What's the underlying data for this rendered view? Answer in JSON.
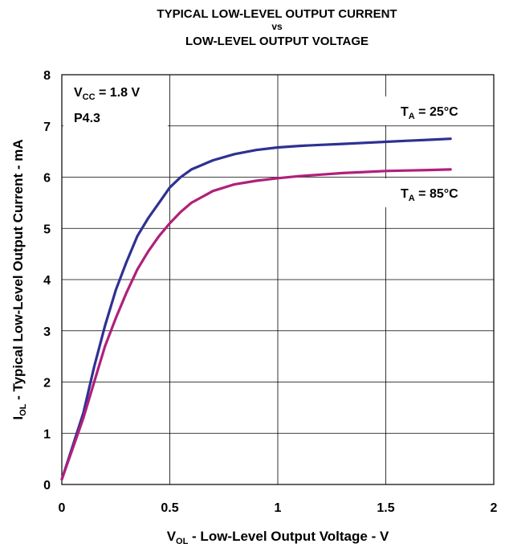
{
  "chart_data": {
    "type": "line",
    "title_lines": [
      "TYPICAL LOW-LEVEL OUTPUT CURRENT",
      "vs",
      "LOW-LEVEL OUTPUT VOLTAGE"
    ],
    "xlabel": {
      "main": "V",
      "sub": "OL",
      "rest": " - Low-Level Output Voltage - V"
    },
    "ylabel": {
      "main": "I",
      "sub": "OL",
      "rest": " - Typical Low-Level Output Current - mA"
    },
    "xlim": [
      0,
      2
    ],
    "ylim": [
      0,
      8
    ],
    "xticks": [
      0,
      0.5,
      1,
      1.5,
      2
    ],
    "xtick_labels": [
      "0",
      "0.5",
      "1",
      "1.5",
      "2"
    ],
    "yticks": [
      0,
      1,
      2,
      3,
      4,
      5,
      6,
      7,
      8
    ],
    "ytick_labels": [
      "0",
      "1",
      "2",
      "3",
      "4",
      "5",
      "6",
      "7",
      "8"
    ],
    "grid": true,
    "annotations": {
      "vcc": {
        "main": "V",
        "sub": "CC",
        "rest": " = 1.8 V"
      },
      "pin": "P4.3"
    },
    "series": [
      {
        "name": "T_A = 25°C",
        "label": {
          "main": "T",
          "sub": "A",
          "rest": " = 25°C"
        },
        "color": "#2E3192",
        "x": [
          0,
          0.05,
          0.1,
          0.15,
          0.2,
          0.25,
          0.3,
          0.35,
          0.4,
          0.45,
          0.5,
          0.55,
          0.6,
          0.7,
          0.8,
          0.9,
          1.0,
          1.1,
          1.2,
          1.3,
          1.4,
          1.5,
          1.6,
          1.7,
          1.8
        ],
        "y": [
          0.1,
          0.75,
          1.4,
          2.3,
          3.1,
          3.8,
          4.35,
          4.85,
          5.2,
          5.5,
          5.8,
          6.0,
          6.15,
          6.33,
          6.45,
          6.53,
          6.58,
          6.61,
          6.63,
          6.65,
          6.67,
          6.69,
          6.71,
          6.73,
          6.75
        ]
      },
      {
        "name": "T_A = 85°C",
        "label": {
          "main": "T",
          "sub": "A",
          "rest": " = 85°C"
        },
        "color": "#B0207A",
        "x": [
          0,
          0.05,
          0.1,
          0.15,
          0.2,
          0.25,
          0.3,
          0.35,
          0.4,
          0.45,
          0.5,
          0.55,
          0.6,
          0.7,
          0.8,
          0.9,
          1.0,
          1.1,
          1.2,
          1.3,
          1.4,
          1.5,
          1.6,
          1.7,
          1.8
        ],
        "y": [
          0.1,
          0.7,
          1.3,
          2.0,
          2.7,
          3.25,
          3.75,
          4.2,
          4.55,
          4.85,
          5.1,
          5.32,
          5.5,
          5.73,
          5.86,
          5.93,
          5.98,
          6.02,
          6.05,
          6.08,
          6.1,
          6.12,
          6.13,
          6.14,
          6.15
        ]
      }
    ]
  }
}
